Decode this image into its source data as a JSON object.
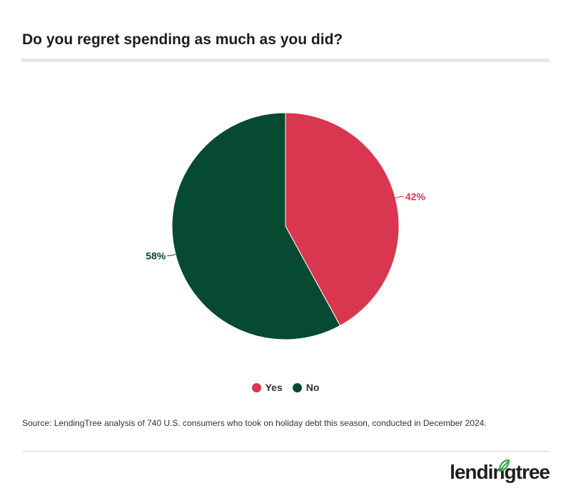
{
  "title": "Do you regret spending as much as you did?",
  "chart_data": {
    "type": "pie",
    "title": "Do you regret spending as much as you did?",
    "categories": [
      "Yes",
      "No"
    ],
    "values": [
      42,
      58
    ],
    "labels": [
      "42%",
      "58%"
    ],
    "colors": [
      "#d93650",
      "#054a31"
    ],
    "legend_position": "bottom-center"
  },
  "legend": {
    "items": [
      {
        "label": "Yes",
        "color": "#d93650"
      },
      {
        "label": "No",
        "color": "#054a31"
      }
    ]
  },
  "source": "Source: LendingTree analysis of 740 U.S. consumers who took on holiday debt this season, conducted in December 2024.",
  "logo": {
    "text": "lendingtree",
    "icon": "leaf-icon",
    "leaf_color": "#37a24a"
  }
}
